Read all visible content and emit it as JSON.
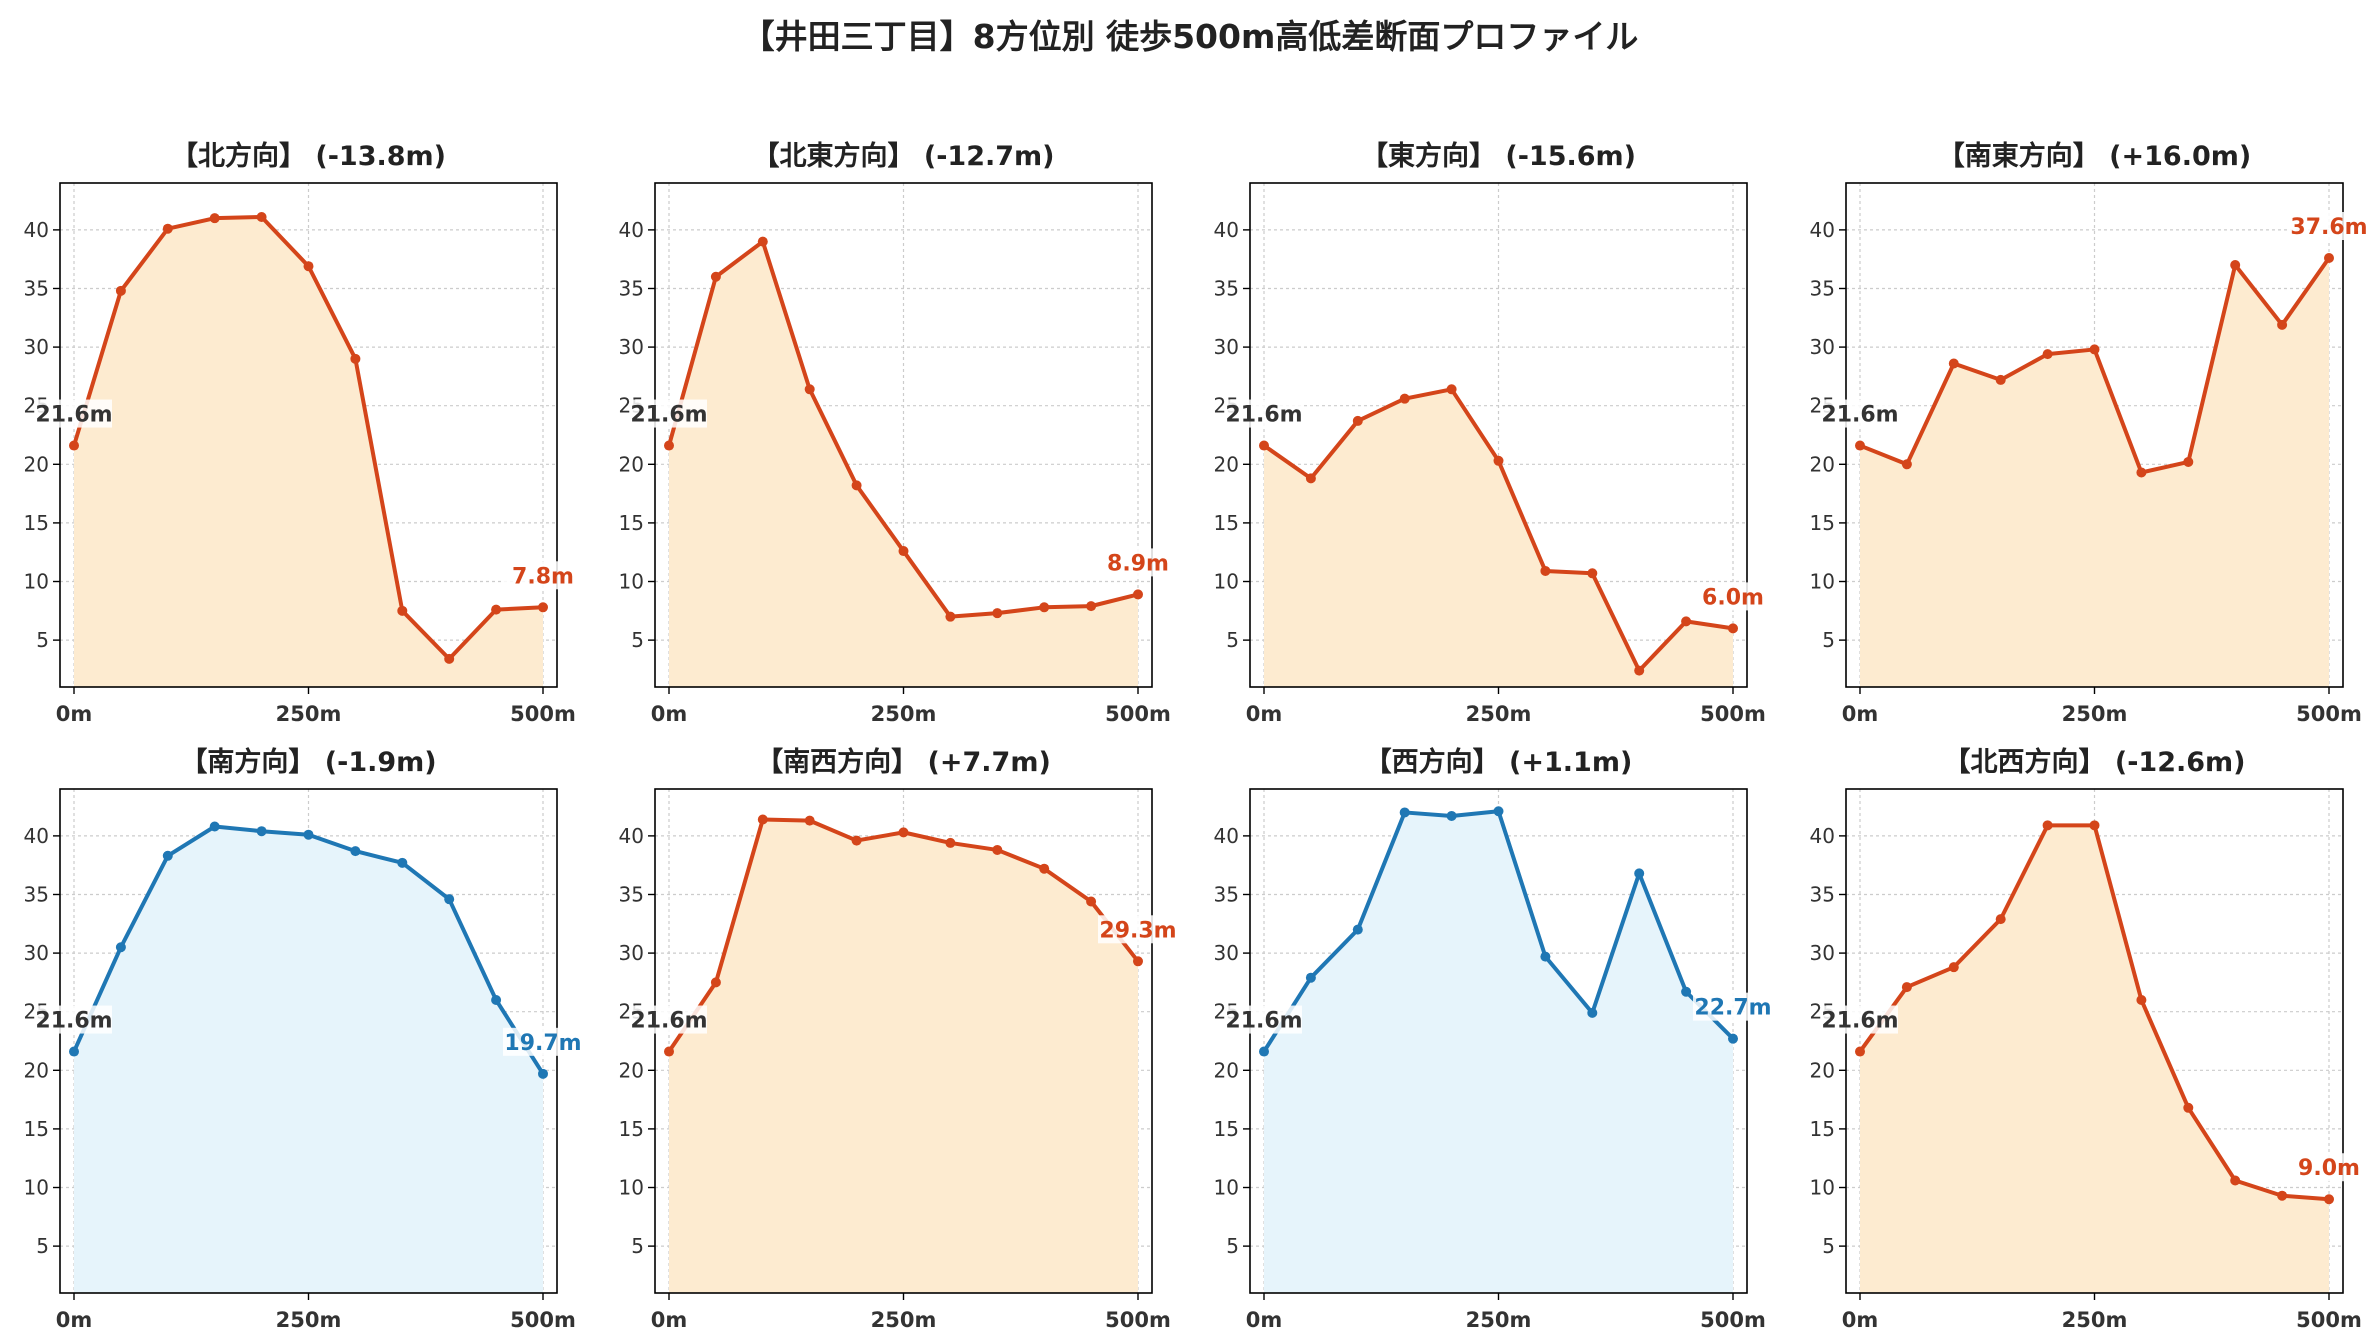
{
  "title": "【井田三丁目】8方位別 徒歩500m高低差断面プロファイル",
  "colors": {
    "down_line": "#d4451a",
    "down_fill": "#fdebd0",
    "up_line": "#1f77b4",
    "up_fill": "#e6f4fb",
    "start_label": "#333333",
    "grid": "#cccccc",
    "axis_text": "#333333"
  },
  "chart_data": [
    {
      "type": "area",
      "title": "【北方向】 (-13.8m)",
      "x": [
        0,
        50,
        100,
        150,
        200,
        250,
        300,
        350,
        400,
        450,
        500
      ],
      "y": [
        21.6,
        34.8,
        40.1,
        41.0,
        41.1,
        36.9,
        29.0,
        7.5,
        3.4,
        7.6,
        7.8
      ],
      "x_ticks": [
        "0m",
        "250m",
        "500m"
      ],
      "y_ticks": [
        5,
        10,
        15,
        20,
        25,
        30,
        35,
        40
      ],
      "ylim": [
        1,
        44
      ],
      "start_label": "21.6m",
      "end_label": "7.8m",
      "color_scheme": "down",
      "grid": true
    },
    {
      "type": "area",
      "title": "【北東方向】 (-12.7m)",
      "x": [
        0,
        50,
        100,
        150,
        200,
        250,
        300,
        350,
        400,
        450,
        500
      ],
      "y": [
        21.6,
        36.0,
        39.0,
        26.4,
        18.2,
        12.6,
        7.0,
        7.3,
        7.8,
        7.9,
        8.9
      ],
      "x_ticks": [
        "0m",
        "250m",
        "500m"
      ],
      "y_ticks": [
        5,
        10,
        15,
        20,
        25,
        30,
        35,
        40
      ],
      "ylim": [
        1,
        44
      ],
      "start_label": "21.6m",
      "end_label": "8.9m",
      "color_scheme": "down",
      "grid": true
    },
    {
      "type": "area",
      "title": "【東方向】 (-15.6m)",
      "x": [
        0,
        50,
        100,
        150,
        200,
        250,
        300,
        350,
        400,
        450,
        500
      ],
      "y": [
        21.6,
        18.8,
        23.7,
        25.6,
        26.4,
        20.3,
        10.9,
        10.7,
        2.4,
        6.6,
        6.0
      ],
      "x_ticks": [
        "0m",
        "250m",
        "500m"
      ],
      "y_ticks": [
        5,
        10,
        15,
        20,
        25,
        30,
        35,
        40
      ],
      "ylim": [
        1,
        44
      ],
      "start_label": "21.6m",
      "end_label": "6.0m",
      "color_scheme": "down",
      "grid": true
    },
    {
      "type": "area",
      "title": "【南東方向】 (+16.0m)",
      "x": [
        0,
        50,
        100,
        150,
        200,
        250,
        300,
        350,
        400,
        450,
        500
      ],
      "y": [
        21.6,
        20.0,
        28.6,
        27.2,
        29.4,
        29.8,
        19.3,
        20.2,
        37.0,
        31.9,
        37.6
      ],
      "x_ticks": [
        "0m",
        "250m",
        "500m"
      ],
      "y_ticks": [
        5,
        10,
        15,
        20,
        25,
        30,
        35,
        40
      ],
      "ylim": [
        1,
        44
      ],
      "start_label": "21.6m",
      "end_label": "37.6m",
      "color_scheme": "down",
      "grid": true
    },
    {
      "type": "area",
      "title": "【南方向】 (-1.9m)",
      "x": [
        0,
        50,
        100,
        150,
        200,
        250,
        300,
        350,
        400,
        450,
        500
      ],
      "y": [
        21.6,
        30.5,
        38.3,
        40.8,
        40.4,
        40.1,
        38.7,
        37.7,
        34.6,
        26.0,
        19.7
      ],
      "x_ticks": [
        "0m",
        "250m",
        "500m"
      ],
      "y_ticks": [
        5,
        10,
        15,
        20,
        25,
        30,
        35,
        40
      ],
      "ylim": [
        1,
        44
      ],
      "start_label": "21.6m",
      "end_label": "19.7m",
      "color_scheme": "up",
      "grid": true
    },
    {
      "type": "area",
      "title": "【南西方向】 (+7.7m)",
      "x": [
        0,
        50,
        100,
        150,
        200,
        250,
        300,
        350,
        400,
        450,
        500
      ],
      "y": [
        21.6,
        27.5,
        41.4,
        41.3,
        39.6,
        40.3,
        39.4,
        38.8,
        37.2,
        34.4,
        29.3
      ],
      "x_ticks": [
        "0m",
        "250m",
        "500m"
      ],
      "y_ticks": [
        5,
        10,
        15,
        20,
        25,
        30,
        35,
        40
      ],
      "ylim": [
        1,
        44
      ],
      "start_label": "21.6m",
      "end_label": "29.3m",
      "color_scheme": "down",
      "grid": true
    },
    {
      "type": "area",
      "title": "【西方向】 (+1.1m)",
      "x": [
        0,
        50,
        100,
        150,
        200,
        250,
        300,
        350,
        400,
        450,
        500
      ],
      "y": [
        21.6,
        27.9,
        32.0,
        42.0,
        41.7,
        42.1,
        29.7,
        24.9,
        36.8,
        26.7,
        22.7
      ],
      "x_ticks": [
        "0m",
        "250m",
        "500m"
      ],
      "y_ticks": [
        5,
        10,
        15,
        20,
        25,
        30,
        35,
        40
      ],
      "ylim": [
        1,
        44
      ],
      "start_label": "21.6m",
      "end_label": "22.7m",
      "color_scheme": "up",
      "grid": true
    },
    {
      "type": "area",
      "title": "【北西方向】 (-12.6m)",
      "x": [
        0,
        50,
        100,
        150,
        200,
        250,
        300,
        350,
        400,
        450,
        500
      ],
      "y": [
        21.6,
        27.1,
        28.8,
        32.9,
        40.9,
        40.9,
        26.0,
        16.8,
        10.6,
        9.3,
        9.0
      ],
      "x_ticks": [
        "0m",
        "250m",
        "500m"
      ],
      "y_ticks": [
        5,
        10,
        15,
        20,
        25,
        30,
        35,
        40
      ],
      "ylim": [
        1,
        44
      ],
      "start_label": "21.6m",
      "end_label": "9.0m",
      "color_scheme": "down",
      "grid": true
    }
  ]
}
